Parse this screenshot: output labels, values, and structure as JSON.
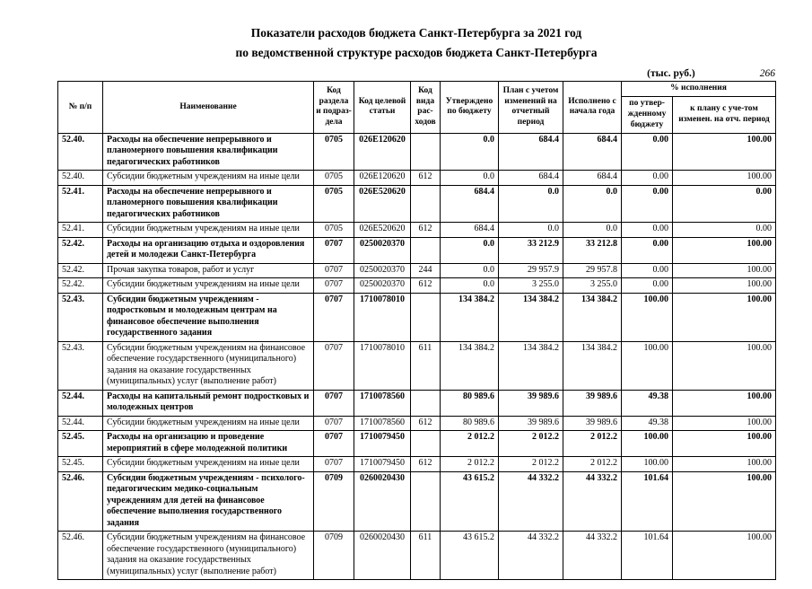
{
  "page": {
    "title_line1": "Показатели расходов бюджета Санкт-Петербурга за 2021 год",
    "title_line2": "по ведомственной структуре расходов бюджета Санкт-Петербурга",
    "units_note": "(тыс. руб.)",
    "page_number": "266"
  },
  "table": {
    "headers": {
      "num": "№ п/п",
      "name": "Наименование",
      "section_code": "Код раздела и подраз-дела",
      "article_code": "Код целевой статьи",
      "type_code": "Код вида рас-ходов",
      "approved": "Утверждено по бюджету",
      "plan": "План с учетом изменений на отчетный период",
      "executed": "Исполнено с начала года",
      "pct_group": "% исполнения",
      "pct_budget": "по утвер-жденному бюджету",
      "pct_plan": "к плану с уче-том изменен. на отч. период"
    },
    "rows": [
      {
        "num": "52.40.",
        "name": "Расходы на обеспечение непрерывного и планомерного повышения квалификации педагогических работников",
        "bold": true,
        "section": "0705",
        "article": "026E120620",
        "type": "",
        "approved": "0.0",
        "plan": "684.4",
        "executed": "684.4",
        "pct_budget": "0.00",
        "pct_plan": "100.00"
      },
      {
        "num": "52.40.",
        "name": "Субсидии бюджетным учреждениям на иные цели",
        "bold": false,
        "section": "0705",
        "article": "026E120620",
        "type": "612",
        "approved": "0.0",
        "plan": "684.4",
        "executed": "684.4",
        "pct_budget": "0.00",
        "pct_plan": "100.00"
      },
      {
        "num": "52.41.",
        "name": "Расходы на обеспечение непрерывного и планомерного повышения квалификации педагогических работников",
        "bold": true,
        "section": "0705",
        "article": "026E520620",
        "type": "",
        "approved": "684.4",
        "plan": "0.0",
        "executed": "0.0",
        "pct_budget": "0.00",
        "pct_plan": "0.00"
      },
      {
        "num": "52.41.",
        "name": "Субсидии бюджетным учреждениям на иные цели",
        "bold": false,
        "section": "0705",
        "article": "026E520620",
        "type": "612",
        "approved": "684.4",
        "plan": "0.0",
        "executed": "0.0",
        "pct_budget": "0.00",
        "pct_plan": "0.00"
      },
      {
        "num": "52.42.",
        "name": "Расходы на организацию отдыха и оздоровления детей и молодежи Санкт-Петербурга",
        "bold": true,
        "section": "0707",
        "article": "0250020370",
        "type": "",
        "approved": "0.0",
        "plan": "33 212.9",
        "executed": "33 212.8",
        "pct_budget": "0.00",
        "pct_plan": "100.00"
      },
      {
        "num": "52.42.",
        "name": "Прочая закупка товаров, работ и услуг",
        "bold": false,
        "section": "0707",
        "article": "0250020370",
        "type": "244",
        "approved": "0.0",
        "plan": "29 957.9",
        "executed": "29 957.8",
        "pct_budget": "0.00",
        "pct_plan": "100.00"
      },
      {
        "num": "52.42.",
        "name": "Субсидии бюджетным учреждениям на иные цели",
        "bold": false,
        "section": "0707",
        "article": "0250020370",
        "type": "612",
        "approved": "0.0",
        "plan": "3 255.0",
        "executed": "3 255.0",
        "pct_budget": "0.00",
        "pct_plan": "100.00"
      },
      {
        "num": "52.43.",
        "name": "Субсидии бюджетным учреждениям - подростковым и молодежным центрам на финансовое обеспечение выполнения государственного задания",
        "bold": true,
        "section": "0707",
        "article": "1710078010",
        "type": "",
        "approved": "134 384.2",
        "plan": "134 384.2",
        "executed": "134 384.2",
        "pct_budget": "100.00",
        "pct_plan": "100.00"
      },
      {
        "num": "52.43.",
        "name": "Субсидии бюджетным учреждениям на финансовое обеспечение государственного (муниципального) задания на оказание государственных (муниципальных) услуг (выполнение работ)",
        "bold": false,
        "section": "0707",
        "article": "1710078010",
        "type": "611",
        "approved": "134 384.2",
        "plan": "134 384.2",
        "executed": "134 384.2",
        "pct_budget": "100.00",
        "pct_plan": "100.00"
      },
      {
        "num": "52.44.",
        "name": "Расходы на капитальный ремонт подростковых и молодежных центров",
        "bold": true,
        "section": "0707",
        "article": "1710078560",
        "type": "",
        "approved": "80 989.6",
        "plan": "39 989.6",
        "executed": "39 989.6",
        "pct_budget": "49.38",
        "pct_plan": "100.00"
      },
      {
        "num": "52.44.",
        "name": "Субсидии бюджетным учреждениям на иные цели",
        "bold": false,
        "section": "0707",
        "article": "1710078560",
        "type": "612",
        "approved": "80 989.6",
        "plan": "39 989.6",
        "executed": "39 989.6",
        "pct_budget": "49.38",
        "pct_plan": "100.00"
      },
      {
        "num": "52.45.",
        "name": "Расходы на организацию и проведение мероприятий в сфере молодежной политики",
        "bold": true,
        "section": "0707",
        "article": "1710079450",
        "type": "",
        "approved": "2 012.2",
        "plan": "2 012.2",
        "executed": "2 012.2",
        "pct_budget": "100.00",
        "pct_plan": "100.00"
      },
      {
        "num": "52.45.",
        "name": "Субсидии бюджетным учреждениям на иные цели",
        "bold": false,
        "section": "0707",
        "article": "1710079450",
        "type": "612",
        "approved": "2 012.2",
        "plan": "2 012.2",
        "executed": "2 012.2",
        "pct_budget": "100.00",
        "pct_plan": "100.00"
      },
      {
        "num": "52.46.",
        "name": "Субсидии бюджетным учреждениям - психолого-педагогическим медико-социальным учреждениям для детей на финансовое обеспечение выполнения государственного задания",
        "bold": true,
        "section": "0709",
        "article": "0260020430",
        "type": "",
        "approved": "43 615.2",
        "plan": "44 332.2",
        "executed": "44 332.2",
        "pct_budget": "101.64",
        "pct_plan": "100.00"
      },
      {
        "num": "52.46.",
        "name": "Субсидии бюджетным учреждениям на финансовое обеспечение государственного (муниципального) задания на оказание государственных (муниципальных) услуг (выполнение работ)",
        "bold": false,
        "section": "0709",
        "article": "0260020430",
        "type": "611",
        "approved": "43 615.2",
        "plan": "44 332.2",
        "executed": "44 332.2",
        "pct_budget": "101.64",
        "pct_plan": "100.00"
      }
    ]
  }
}
